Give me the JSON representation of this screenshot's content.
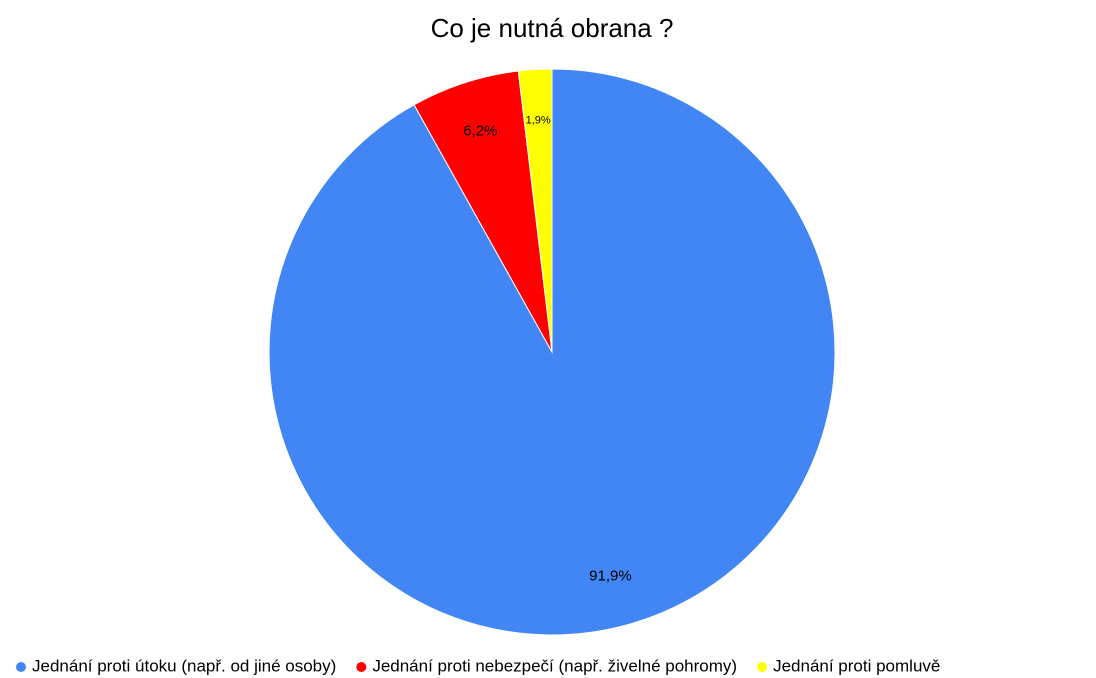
{
  "chart_data": {
    "type": "pie",
    "title": "Co je nutná obrana ?",
    "categories": [
      "Jednání proti útoku (např. od jiné osoby)",
      "Jednání proti nebezpečí (např. živelné pohromy)",
      "Jednání proti pomluvě"
    ],
    "values": [
      91.9,
      6.2,
      1.9
    ],
    "value_labels": [
      "91,9%",
      "6,2%",
      "1,9%"
    ],
    "colors": [
      "#4285f4",
      "#ff0000",
      "#ffff00"
    ],
    "legend": "bottom"
  }
}
